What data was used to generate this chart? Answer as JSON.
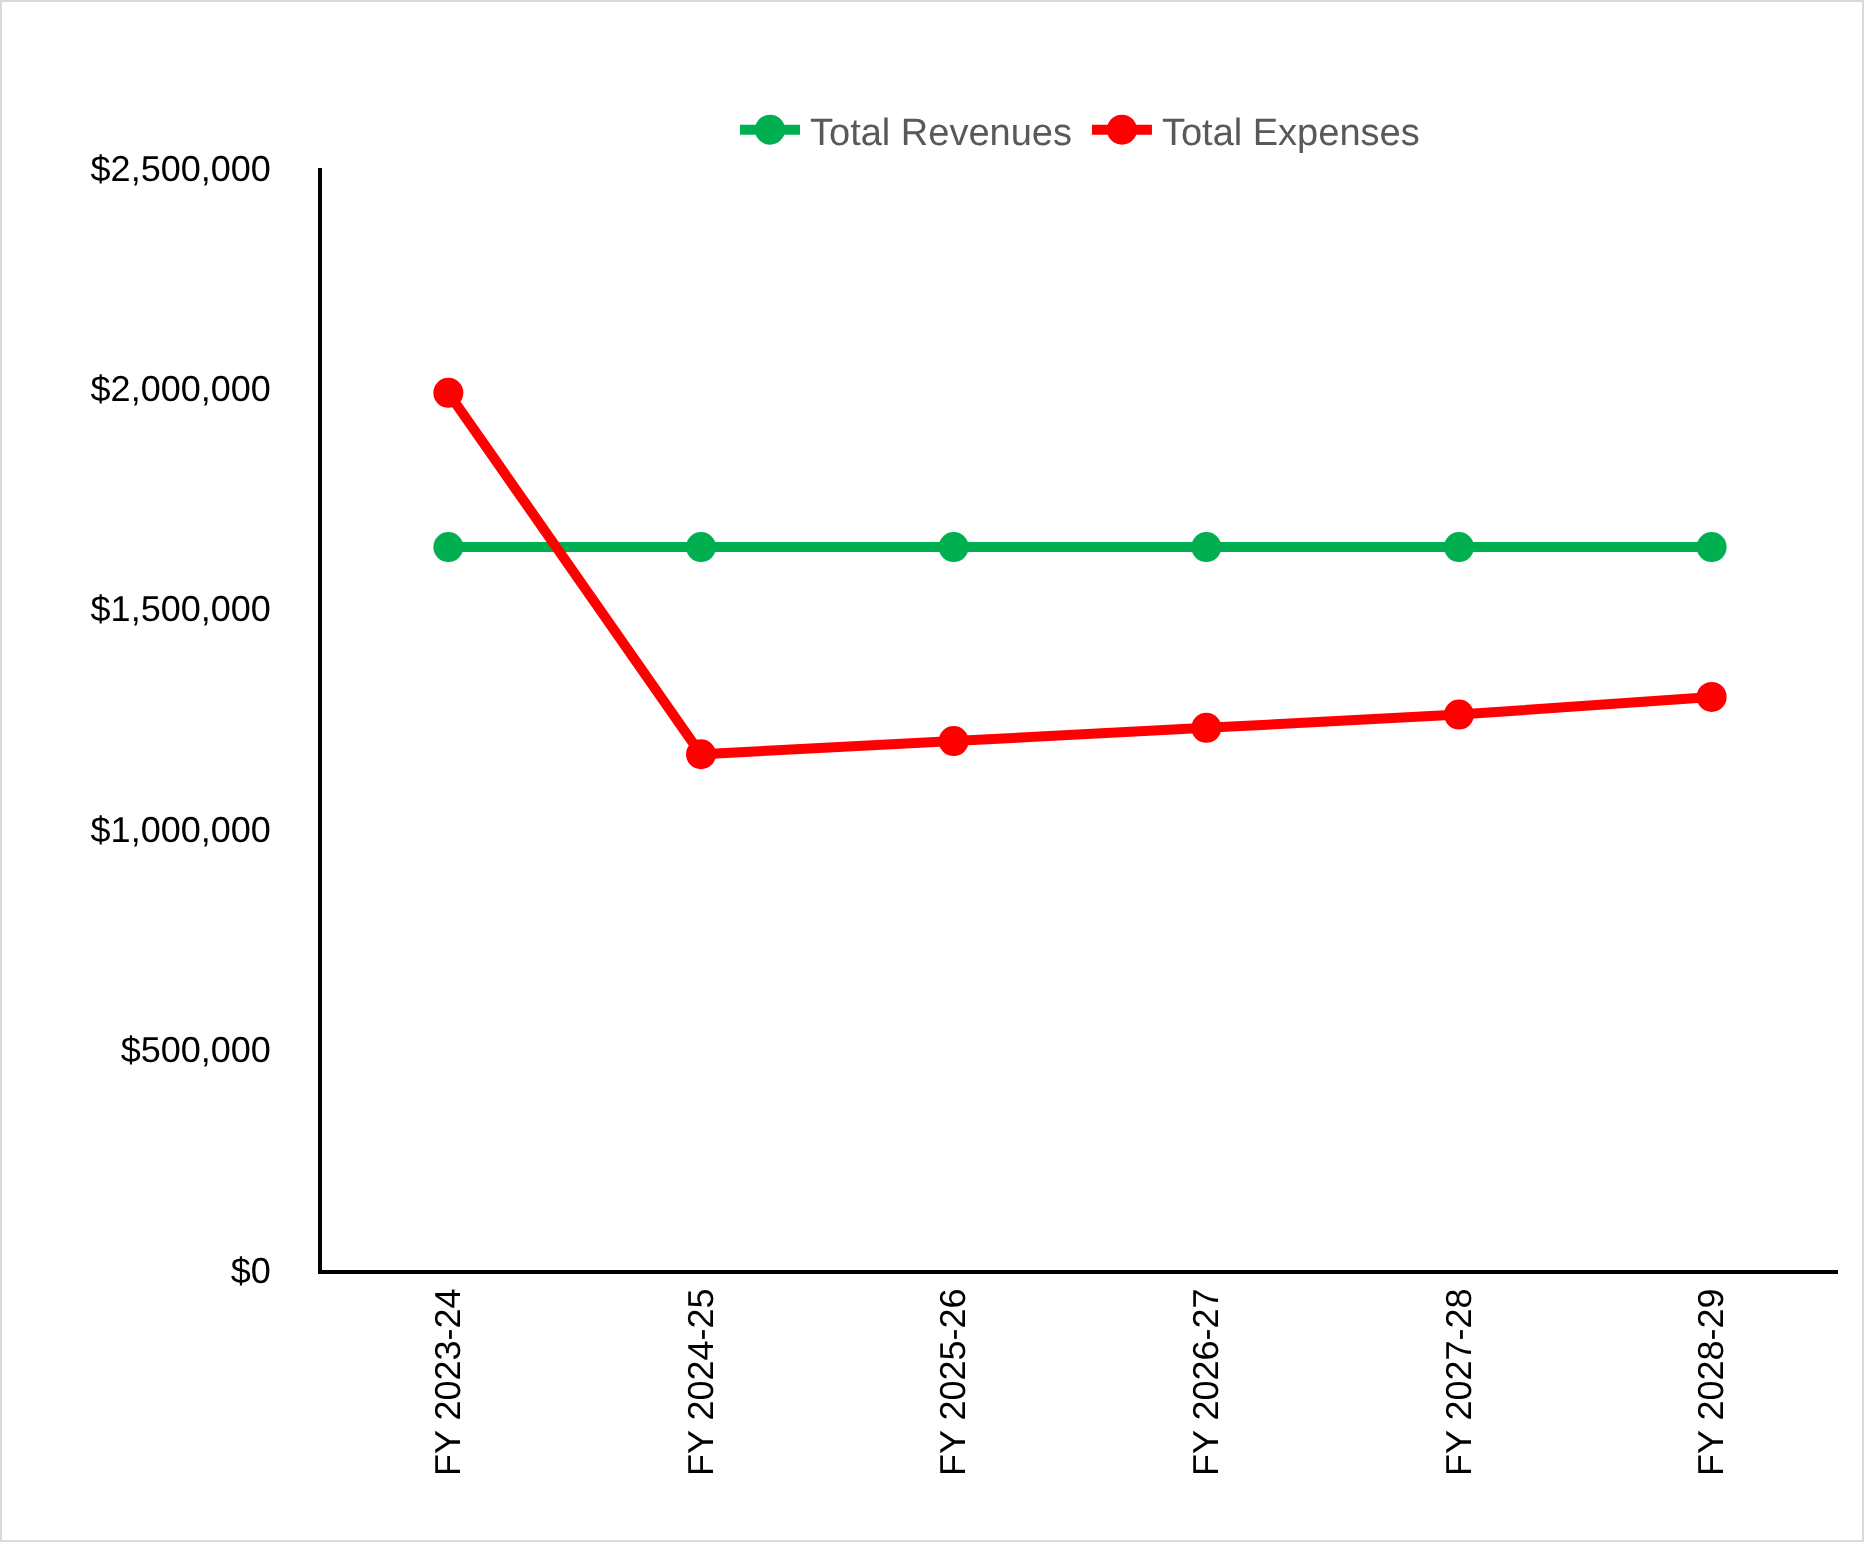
{
  "chart_data": {
    "type": "line",
    "categories": [
      "FY 2023-24",
      "FY 2024-25",
      "FY 2025-26",
      "FY 2026-27",
      "FY 2027-28",
      "FY 2028-29"
    ],
    "series": [
      {
        "name": "Total Revenues",
        "color": "#00b050",
        "values": [
          1640000,
          1640000,
          1640000,
          1640000,
          1640000,
          1640000
        ]
      },
      {
        "name": "Total Expenses",
        "color": "#ff0000",
        "values": [
          1990000,
          1170000,
          1200000,
          1230000,
          1260000,
          1300000
        ]
      }
    ],
    "ylim": [
      0,
      2500000
    ],
    "yticks": [
      {
        "value": 0,
        "label": "$0"
      },
      {
        "value": 500000,
        "label": "$500,000"
      },
      {
        "value": 1000000,
        "label": "$1,000,000"
      },
      {
        "value": 1500000,
        "label": "$1,500,000"
      },
      {
        "value": 2000000,
        "label": "$2,000,000"
      },
      {
        "value": 2500000,
        "label": "$2,500,000"
      }
    ],
    "grid": false,
    "legend": "top",
    "marker": "circle",
    "line_style": "solid"
  }
}
